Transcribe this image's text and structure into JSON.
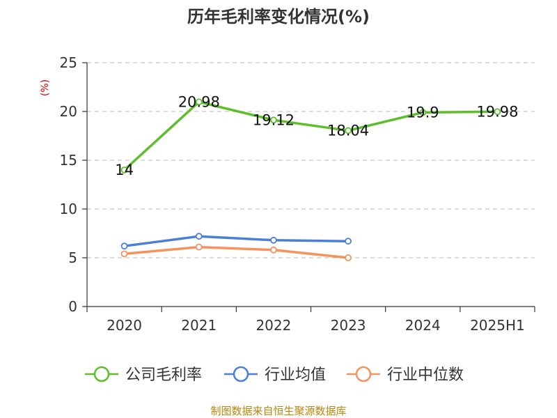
{
  "chart_data": {
    "type": "line",
    "title": "历年毛利率变化情况(%)",
    "ylabel": "(%)",
    "categories": [
      "2020",
      "2021",
      "2022",
      "2023",
      "2024",
      "2025H1"
    ],
    "ylim": [
      0,
      25
    ],
    "yticks": [
      0,
      5,
      10,
      15,
      20,
      25
    ],
    "grid": "horizontal-dashed",
    "legend_position": "bottom",
    "series": [
      {
        "name": "公司毛利率",
        "color": "#5cbf2a",
        "values": [
          14,
          20.98,
          19.12,
          18.04,
          19.9,
          19.98
        ],
        "labels": [
          "14",
          "20.98",
          "19.12",
          "18.04",
          "19.9",
          "19.98"
        ]
      },
      {
        "name": "行业均值",
        "color": "#4a7fd8",
        "values": [
          6.2,
          7.2,
          6.8,
          6.7,
          null,
          null
        ]
      },
      {
        "name": "行业中位数",
        "color": "#f5925e",
        "values": [
          5.4,
          6.1,
          5.8,
          5.0,
          null,
          null
        ]
      }
    ],
    "source": "制图数据来自恒生聚源数据库"
  }
}
